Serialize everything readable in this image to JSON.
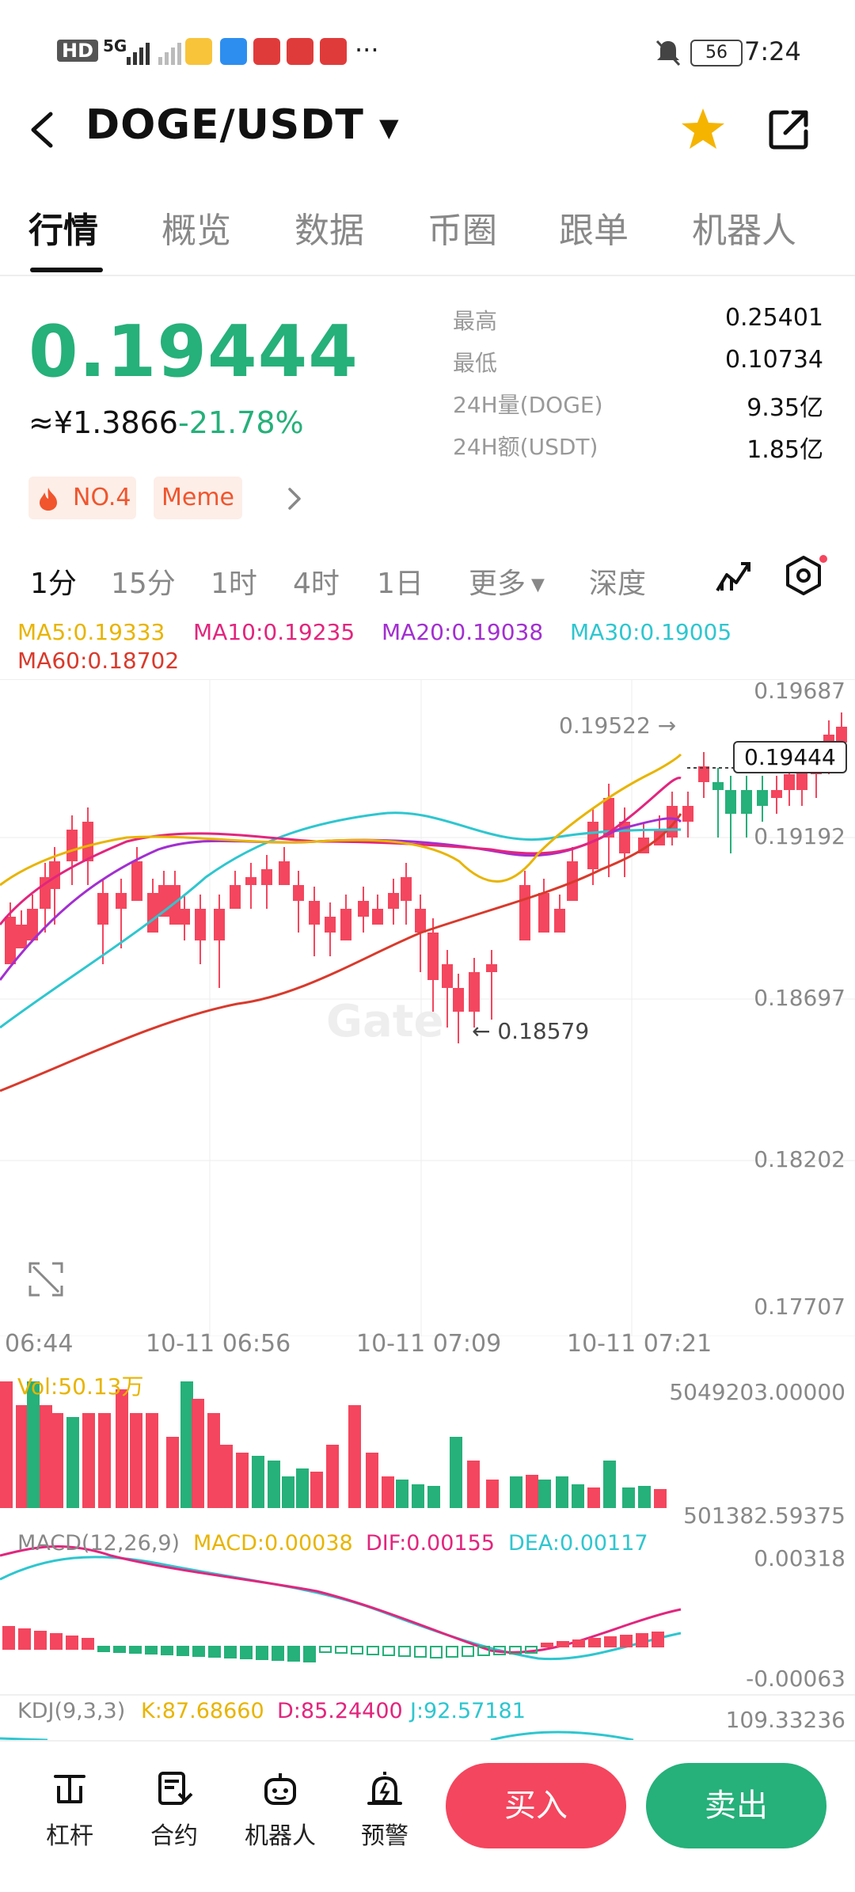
{
  "status_bar": {
    "network": "HD",
    "signal": "5G",
    "more": "···",
    "battery": "56",
    "time": "7:24"
  },
  "header": {
    "pair": "DOGE/USDT",
    "dropdown": "▼"
  },
  "tabs": [
    "行情",
    "概览",
    "数据",
    "币圈",
    "跟单",
    "机器人"
  ],
  "price": {
    "last": "0.19444",
    "cny": "≈¥1.3866",
    "change": "-21.78%"
  },
  "stats": [
    {
      "label": "最高",
      "value": "0.25401"
    },
    {
      "label": "最低",
      "value": "0.10734"
    },
    {
      "label": "24H量(DOGE)",
      "value": "9.35亿"
    },
    {
      "label": "24H额(USDT)",
      "value": "1.85亿"
    }
  ],
  "tags": {
    "rank": "NO.4",
    "category": "Meme"
  },
  "timeframes": [
    "1分",
    "15分",
    "1时",
    "4时",
    "1日",
    "更多",
    "深度"
  ],
  "ma_legend": [
    {
      "text": "MA5:0.19333",
      "color": "#e8b400"
    },
    {
      "text": "MA10:0.19235",
      "color": "#e2257d"
    },
    {
      "text": "MA20:0.19038",
      "color": "#a22fd0"
    },
    {
      "text": "MA30:0.19005",
      "color": "#2ec6cf"
    },
    {
      "text": "MA60:0.18702",
      "color": "#d83a2c"
    }
  ],
  "chart": {
    "y_labels": [
      "0.19687",
      "0.19192",
      "0.18697",
      "0.18202",
      "0.17707"
    ],
    "x_labels": [
      "06:44",
      "10-11 06:56",
      "10-11 07:09",
      "10-11 07:21"
    ],
    "high_label": "0.19522 →",
    "low_label": "← 0.18579",
    "last_price": "0.19444",
    "watermark": "Gate"
  },
  "volume": {
    "legend": "Vol:50.13万",
    "top_label": "5049203.00000",
    "bottom_label": "501382.59375"
  },
  "macd": {
    "legend_name": "MACD(12,26,9)",
    "legend_macd": "MACD:0.00038",
    "legend_dif": "DIF:0.00155",
    "legend_dea": "DEA:0.00117",
    "top_label": "0.00318",
    "bottom_label": "-0.00063"
  },
  "kdj": {
    "legend_name": "KDJ(9,3,3)",
    "legend_k": "K:87.68660",
    "legend_d": "D:85.24400",
    "legend_j": "J:92.57181",
    "top_label": "109.33236"
  },
  "bottom_nav": [
    {
      "label": "杠杆",
      "icon": "leverage-icon"
    },
    {
      "label": "合约",
      "icon": "contract-icon"
    },
    {
      "label": "机器人",
      "icon": "robot-icon"
    },
    {
      "label": "预警",
      "icon": "alarm-icon"
    }
  ],
  "actions": {
    "buy": "买入",
    "sell": "卖出"
  },
  "colors": {
    "up": "#f4465e",
    "down": "#26b07a",
    "accent": "#f5b400"
  }
}
